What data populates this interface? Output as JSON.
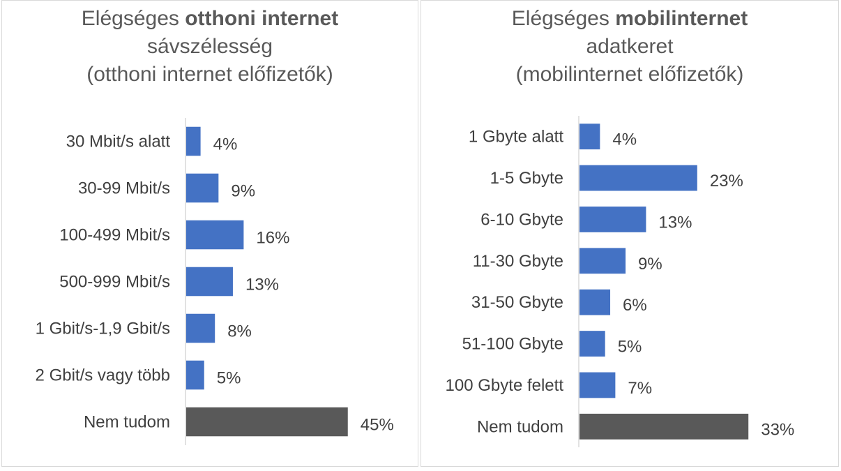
{
  "charts": {
    "left": {
      "title_pre": "Elégséges ",
      "title_bold": "otthoni internet",
      "title_line2": "sávszélesség",
      "title_line3": "(otthoni internet előfizetők)"
    },
    "right": {
      "title_pre": "Elégséges ",
      "title_bold": "mobilinternet",
      "title_line2": "adatkeret",
      "title_line3": "(mobilinternet előfizetők)"
    }
  },
  "chart_data": [
    {
      "type": "bar",
      "orientation": "horizontal",
      "title": "Elégséges otthoni internet sávszélesség (otthoni internet előfizetők)",
      "categories": [
        "30 Mbit/s alatt",
        "30-99 Mbit/s",
        "100-499 Mbit/s",
        "500-999 Mbit/s",
        "1 Gbit/s-1,9 Gbit/s",
        "2 Gbit/s vagy több",
        "Nem tudom"
      ],
      "values": [
        4,
        9,
        16,
        13,
        8,
        5,
        45
      ],
      "labels": [
        "4%",
        "9%",
        "16%",
        "13%",
        "8%",
        "5%",
        "45%"
      ],
      "unit": "%",
      "colors": [
        "#4472c4",
        "#4472c4",
        "#4472c4",
        "#4472c4",
        "#4472c4",
        "#4472c4",
        "#595959"
      ],
      "grid": false,
      "legend": "none"
    },
    {
      "type": "bar",
      "orientation": "horizontal",
      "title": "Elégséges mobilinternet adatkeret (mobilinternet előfizetők)",
      "categories": [
        "1 Gbyte alatt",
        "1-5 Gbyte",
        "6-10 Gbyte",
        "11-30 Gbyte",
        "31-50 Gbyte",
        "51-100 Gbyte",
        "100 Gbyte felett",
        "Nem tudom"
      ],
      "values": [
        4,
        23,
        13,
        9,
        6,
        5,
        7,
        33
      ],
      "labels": [
        "4%",
        "23%",
        "13%",
        "9%",
        "6%",
        "5%",
        "7%",
        "33%"
      ],
      "unit": "%",
      "colors": [
        "#4472c4",
        "#4472c4",
        "#4472c4",
        "#4472c4",
        "#4472c4",
        "#4472c4",
        "#4472c4",
        "#595959"
      ],
      "grid": false,
      "legend": "none"
    }
  ]
}
